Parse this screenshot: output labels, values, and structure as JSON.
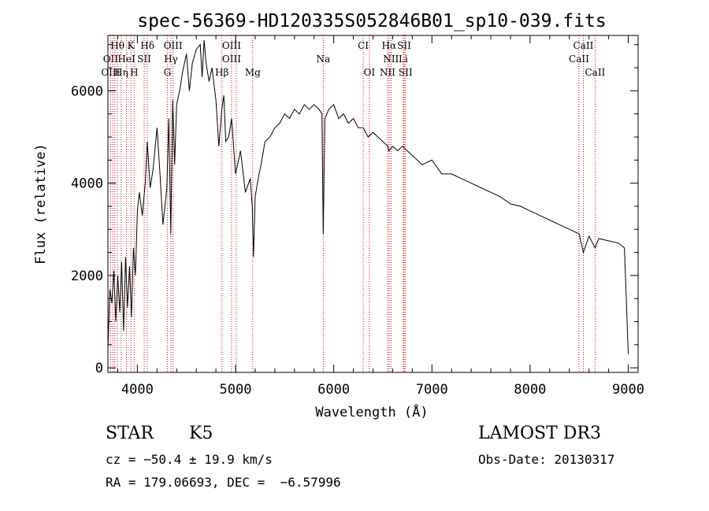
{
  "chart_data": {
    "type": "line",
    "title": "spec-56369-HD120335S052846B01_sp10-039.fits",
    "xlabel": "Wavelength (Å)",
    "ylabel": "Flux (relative)",
    "xlim": [
      3700,
      9100
    ],
    "ylim": [
      -100,
      7200
    ],
    "x_ticks": [
      4000,
      5000,
      6000,
      7000,
      8000,
      9000
    ],
    "y_ticks": [
      0,
      2000,
      4000,
      6000
    ],
    "grid": false,
    "series": [
      {
        "color": "#000000",
        "x": [
          3700,
          3720,
          3740,
          3760,
          3780,
          3800,
          3820,
          3840,
          3860,
          3880,
          3900,
          3920,
          3940,
          3960,
          3980,
          4000,
          4020,
          4050,
          4080,
          4100,
          4130,
          4160,
          4200,
          4230,
          4260,
          4300,
          4320,
          4340,
          4360,
          4380,
          4400,
          4430,
          4460,
          4500,
          4530,
          4560,
          4600,
          4640,
          4660,
          4680,
          4700,
          4730,
          4760,
          4800,
          4830,
          4860,
          4880,
          4900,
          4930,
          4960,
          5000,
          5050,
          5100,
          5150,
          5170,
          5183,
          5200,
          5230,
          5260,
          5300,
          5350,
          5400,
          5450,
          5500,
          5550,
          5600,
          5650,
          5700,
          5750,
          5800,
          5850,
          5880,
          5893,
          5910,
          5950,
          6000,
          6050,
          6100,
          6150,
          6200,
          6250,
          6300,
          6350,
          6400,
          6450,
          6500,
          6550,
          6563,
          6600,
          6650,
          6700,
          6750,
          6800,
          6900,
          7000,
          7100,
          7200,
          7300,
          7400,
          7500,
          7600,
          7700,
          7800,
          7900,
          8000,
          8100,
          8200,
          8300,
          8400,
          8500,
          8542,
          8600,
          8662,
          8700,
          8800,
          8900,
          8960,
          8980,
          9000
        ],
        "y": [
          400,
          1700,
          1400,
          2100,
          1000,
          2000,
          1200,
          2300,
          800,
          2400,
          1300,
          2200,
          1100,
          2600,
          2000,
          3400,
          3800,
          3300,
          4000,
          4900,
          3900,
          4300,
          5200,
          4200,
          3100,
          3900,
          5400,
          2900,
          5800,
          4400,
          5700,
          6000,
          6400,
          6800,
          6000,
          6600,
          6900,
          7000,
          6300,
          7100,
          6600,
          6200,
          6500,
          5800,
          4800,
          5600,
          5900,
          4900,
          5000,
          5400,
          4200,
          4700,
          3800,
          4100,
          3500,
          2400,
          3700,
          4100,
          4400,
          4900,
          5000,
          5200,
          5300,
          5500,
          5400,
          5600,
          5500,
          5700,
          5600,
          5700,
          5600,
          5500,
          2900,
          5400,
          5600,
          5700,
          5400,
          5500,
          5300,
          5400,
          5200,
          5200,
          5000,
          5100,
          5000,
          4900,
          4800,
          4700,
          4800,
          4700,
          4800,
          4700,
          4600,
          4400,
          4500,
          4200,
          4200,
          4100,
          4000,
          3900,
          3800,
          3700,
          3550,
          3500,
          3400,
          3300,
          3200,
          3100,
          3000,
          2900,
          2500,
          2850,
          2600,
          2800,
          2750,
          2700,
          2600,
          1500,
          300
        ]
      }
    ],
    "line_labels": [
      {
        "text": "Hθ",
        "wl": 3797,
        "row": 1
      },
      {
        "text": "K",
        "wl": 3934,
        "row": 1
      },
      {
        "text": "Hδ",
        "wl": 4102,
        "row": 1
      },
      {
        "text": "OIII",
        "wl": 4363,
        "row": 1
      },
      {
        "text": "OIII",
        "wl": 4959,
        "row": 1
      },
      {
        "text": "CI",
        "wl": 6300,
        "row": 1
      },
      {
        "text": "Hα",
        "wl": 6563,
        "row": 1
      },
      {
        "text": "SII",
        "wl": 6717,
        "row": 1
      },
      {
        "text": "CaII",
        "wl": 8542,
        "row": 1
      },
      {
        "text": "OII",
        "wl": 3727,
        "row": 2
      },
      {
        "text": "HeI",
        "wl": 3889,
        "row": 2
      },
      {
        "text": "SII",
        "wl": 4069,
        "row": 2
      },
      {
        "text": "Hγ",
        "wl": 4341,
        "row": 2
      },
      {
        "text": "OIII",
        "wl": 4959,
        "row": 2
      },
      {
        "text": "Na",
        "wl": 5893,
        "row": 2
      },
      {
        "text": "NII",
        "wl": 6583,
        "row": 2
      },
      {
        "text": "Li",
        "wl": 6708,
        "row": 2
      },
      {
        "text": "CaII",
        "wl": 8498,
        "row": 2
      },
      {
        "text": "OIII",
        "wl": 3727,
        "row": 3
      },
      {
        "text": "Hη",
        "wl": 3835,
        "row": 3
      },
      {
        "text": "H",
        "wl": 3968,
        "row": 3
      },
      {
        "text": "G",
        "wl": 4305,
        "row": 3
      },
      {
        "text": "Hβ",
        "wl": 4861,
        "row": 3
      },
      {
        "text": "Mg",
        "wl": 5175,
        "row": 3
      },
      {
        "text": "OI",
        "wl": 6363,
        "row": 3
      },
      {
        "text": "NII",
        "wl": 6548,
        "row": 3
      },
      {
        "text": "SII",
        "wl": 6731,
        "row": 3
      },
      {
        "text": "CaII",
        "wl": 8662,
        "row": 3
      }
    ],
    "marker_lines": [
      3727,
      3750,
      3770,
      3797,
      3835,
      3889,
      3934,
      3968,
      4069,
      4102,
      4305,
      4341,
      4363,
      4861,
      4959,
      5007,
      5175,
      5893,
      6300,
      6363,
      6548,
      6563,
      6583,
      6708,
      6717,
      6731,
      8498,
      8542,
      8662
    ],
    "marker_color": "#cc0000"
  },
  "info": {
    "class": "STAR",
    "subclass": "K5",
    "survey": "LAMOST DR3",
    "cz": "cz = −50.4 ± 19.9 km/s",
    "obs_date": "Obs-Date: 20130317",
    "radec": "RA = 179.06693, DEC =  −6.57996"
  }
}
